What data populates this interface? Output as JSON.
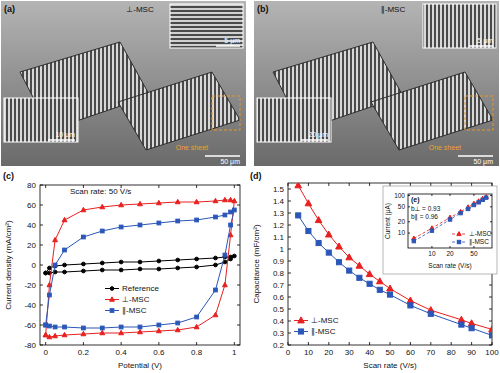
{
  "images": [
    {
      "label": "(a)",
      "title": "⊥-MSC",
      "scale_bars": [
        "5 μm",
        "10 μm",
        "50 μm"
      ],
      "annotation": "One sheet"
    },
    {
      "label": "(b)",
      "title": "∥-MSC",
      "scale_bars": [
        "5 μm",
        "20 μm",
        "50 μm"
      ],
      "annotation": "One sheet"
    }
  ],
  "chart_data": [
    {
      "type": "line",
      "title": "(c)",
      "annotations": [
        "Scan rate: 50 V/s"
      ],
      "x_label": "Potential (V)",
      "y_label": "Current density (mA/cm²)",
      "x": [
        0,
        0.02,
        0.05,
        0.1,
        0.2,
        0.3,
        0.4,
        0.5,
        0.6,
        0.7,
        0.8,
        0.9,
        0.95,
        0.98,
        1,
        0.98,
        0.95,
        0.9,
        0.8,
        0.7,
        0.6,
        0.5,
        0.4,
        0.3,
        0.2,
        0.1,
        0.05,
        0.02,
        0
      ],
      "series": [
        {
          "name": "Reference",
          "color": "#000000",
          "marker": "circle",
          "line_style": "solid",
          "values": [
            -8,
            -3,
            -1,
            0,
            1,
            2,
            3,
            3,
            4,
            5,
            6,
            7,
            8,
            8,
            9,
            6,
            3,
            0,
            -2,
            -3,
            -4,
            -4,
            -5,
            -5,
            -6,
            -7,
            -7,
            -8,
            -8
          ]
        },
        {
          "name": "⊥-MSC",
          "color": "#e8201f",
          "marker": "triangle",
          "line_style": "solid",
          "values": [
            -70,
            -20,
            25,
            45,
            55,
            58,
            60,
            61,
            62,
            63,
            63,
            64,
            65,
            65,
            64,
            30,
            -20,
            -50,
            -62,
            -65,
            -66,
            -67,
            -68,
            -68,
            -69,
            -70,
            -71,
            -72,
            -70
          ]
        },
        {
          "name": "∥-MSC",
          "color": "#2a57b8",
          "marker": "square",
          "line_style": "solid",
          "values": [
            -60,
            -30,
            0,
            15,
            28,
            34,
            38,
            40,
            42,
            44,
            45,
            48,
            50,
            53,
            55,
            40,
            10,
            -25,
            -52,
            -58,
            -60,
            -62,
            -62,
            -63,
            -63,
            -62,
            -62,
            -61,
            -60
          ]
        }
      ],
      "xlim": [
        -0.03,
        1.03
      ],
      "xticks": [
        0,
        0.2,
        0.4,
        0.6,
        0.8,
        1
      ],
      "ylim": [
        -80,
        80
      ],
      "yticks": [
        -80,
        -60,
        -40,
        -20,
        0,
        20,
        40,
        60,
        80
      ],
      "grid": false,
      "legend": "lower center"
    },
    {
      "type": "line",
      "title": "(d)",
      "x_label": "Scan rate (V/s)",
      "y_label": "Capacitance (mF/cm²)",
      "x": [
        5,
        10,
        15,
        20,
        25,
        30,
        35,
        40,
        45,
        50,
        60,
        70,
        85,
        90,
        100
      ],
      "series": [
        {
          "name": "⊥-MSC",
          "color": "#e8201f",
          "marker": "triangle",
          "line_style": "solid",
          "values": [
            1.53,
            1.38,
            1.24,
            1.12,
            1.02,
            0.93,
            0.86,
            0.79,
            0.73,
            0.67,
            0.57,
            0.49,
            0.41,
            0.38,
            0.33
          ]
        },
        {
          "name": "∥-MSC",
          "color": "#2a57b8",
          "marker": "square",
          "line_style": "solid",
          "values": [
            1.28,
            1.15,
            1.05,
            0.97,
            0.89,
            0.82,
            0.76,
            0.71,
            0.66,
            0.62,
            0.53,
            0.46,
            0.37,
            0.34,
            0.28
          ]
        }
      ],
      "xlim": [
        0,
        100
      ],
      "xticks": [
        0,
        10,
        20,
        30,
        40,
        50,
        60,
        70,
        80,
        90,
        100
      ],
      "ylim": [
        0.2,
        1.55
      ],
      "yticks": [
        0.2,
        0.3,
        0.4,
        0.5,
        0.6,
        0.7,
        0.8,
        0.9,
        1,
        1.1,
        1.2,
        1.3,
        1.4,
        1.5
      ],
      "grid": false,
      "legend": "lower left"
    },
    {
      "type": "line",
      "title": "(e)",
      "annotations": [
        "b⊥ = 0.93",
        "b∥ = 0.96"
      ],
      "x_label": "Scan rate (V/s)",
      "y_label": "Current (μA)",
      "x": [
        5,
        10,
        20,
        30,
        40,
        50,
        60,
        70,
        80
      ],
      "series": [
        {
          "name": "⊥-MSC",
          "color": "#e8201f",
          "marker": "triangle",
          "line_style": "dashed",
          "values": [
            7.2,
            13.5,
            26,
            37,
            49,
            61,
            71,
            83,
            92
          ]
        },
        {
          "name": "∥-MSC",
          "color": "#2a57b8",
          "marker": "square",
          "line_style": "dashed",
          "values": [
            6.1,
            11.6,
            23,
            34,
            44,
            56,
            66,
            77,
            88
          ]
        }
      ],
      "log": true,
      "xlim": [
        4,
        100
      ],
      "xticks": [
        10,
        20,
        50
      ],
      "ylim": [
        4,
        110
      ],
      "yticks": [
        10,
        20,
        50,
        100
      ],
      "grid": false,
      "legend": "lower right"
    }
  ]
}
